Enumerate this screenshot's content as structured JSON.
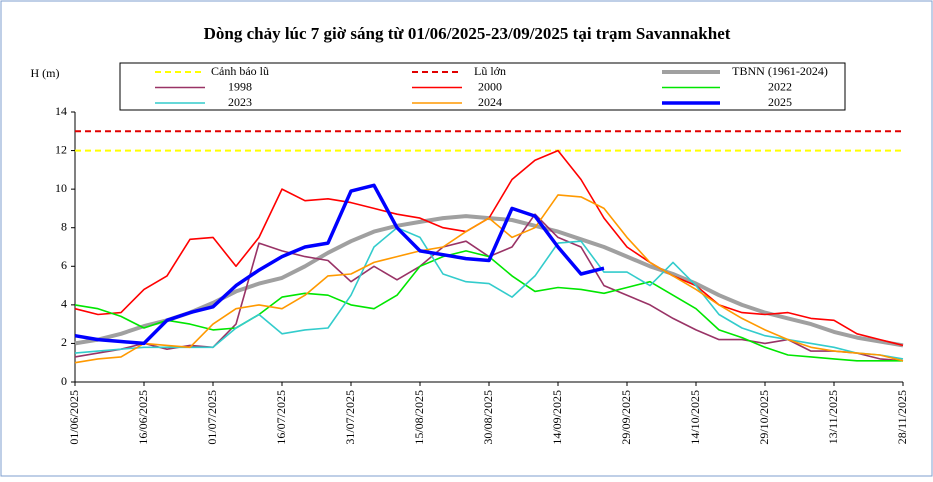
{
  "chart_data": {
    "type": "line",
    "title": "Dòng chảy lúc 7 giờ sáng từ 01/06/2025-23/09/2025 tại trạm Savannakhet",
    "y_label": "H (m)",
    "x": [
      "01/06/2025",
      null,
      null,
      "16/06/2025",
      null,
      null,
      "01/07/2025",
      null,
      null,
      "16/07/2025",
      null,
      null,
      "31/07/2025",
      null,
      null,
      "15/08/2025",
      null,
      null,
      "30/08/2025",
      null,
      null,
      "14/09/2025",
      null,
      null,
      "29/09/2025",
      null,
      null,
      "14/10/2025",
      null,
      null,
      "29/10/2025",
      null,
      null,
      "13/11/2025",
      null,
      null,
      "28/11/2025"
    ],
    "ylim": [
      0,
      14
    ],
    "yticks": [
      0,
      2,
      4,
      6,
      8,
      10,
      12,
      14
    ],
    "series": [
      {
        "name": "Cảnh báo lũ",
        "color": "#ffff00",
        "dashed": true,
        "value": 12
      },
      {
        "name": "Lũ lớn",
        "color": "#e00000",
        "dashed": true,
        "value": 13
      },
      {
        "name": "TBNN (1961-2024)",
        "color": "#a0a0a0",
        "values": [
          2.0,
          2.2,
          2.5,
          2.9,
          3.2,
          3.6,
          4.1,
          4.7,
          5.1,
          5.4,
          6.0,
          6.7,
          7.3,
          7.8,
          8.1,
          8.3,
          8.5,
          8.6,
          8.5,
          8.4,
          8.1,
          7.8,
          7.4,
          7.0,
          6.5,
          6.0,
          5.6,
          5.1,
          4.5,
          4.0,
          3.6,
          3.3,
          3.0,
          2.6,
          2.3,
          2.1,
          1.9
        ]
      },
      {
        "name": "1998",
        "color": "#993366",
        "values": [
          1.3,
          1.5,
          1.7,
          2.0,
          1.7,
          1.9,
          1.8,
          3.0,
          7.2,
          6.8,
          6.5,
          6.3,
          5.2,
          6.0,
          5.3,
          6.0,
          7.0,
          7.3,
          6.5,
          7.0,
          8.7,
          7.5,
          7.0,
          5.0,
          4.5,
          4.0,
          3.3,
          2.7,
          2.2,
          2.2,
          2.0,
          2.2,
          1.6,
          1.6,
          1.5,
          1.2,
          1.1
        ]
      },
      {
        "name": "2000",
        "color": "#ff0000",
        "values": [
          3.8,
          3.5,
          3.6,
          4.8,
          5.5,
          7.4,
          7.5,
          6.0,
          7.5,
          10.0,
          9.4,
          9.5,
          9.3,
          9.0,
          8.7,
          8.5,
          8.0,
          7.8,
          8.5,
          10.5,
          11.5,
          12.0,
          10.5,
          8.5,
          7.0,
          6.2,
          5.5,
          5.0,
          4.0,
          3.6,
          3.5,
          3.6,
          3.3,
          3.2,
          2.5,
          2.2,
          1.9
        ]
      },
      {
        "name": "2022",
        "color": "#00e600",
        "values": [
          4.0,
          3.8,
          3.4,
          2.8,
          3.2,
          3.0,
          2.7,
          2.8,
          3.5,
          4.4,
          4.6,
          4.5,
          4.0,
          3.8,
          4.5,
          6.0,
          6.5,
          6.8,
          6.5,
          5.5,
          4.7,
          4.9,
          4.8,
          4.6,
          4.9,
          5.2,
          4.5,
          3.8,
          2.7,
          2.3,
          1.8,
          1.4,
          1.3,
          1.2,
          1.1,
          1.1,
          1.1
        ]
      },
      {
        "name": "2023",
        "color": "#33cccc",
        "values": [
          1.5,
          1.6,
          1.7,
          1.8,
          1.8,
          1.8,
          1.8,
          2.8,
          3.5,
          2.5,
          2.7,
          2.8,
          4.5,
          7.0,
          8.0,
          7.5,
          5.6,
          5.2,
          5.1,
          4.4,
          5.5,
          7.2,
          7.3,
          5.7,
          5.7,
          5.0,
          6.2,
          5.0,
          3.5,
          2.8,
          2.4,
          2.2,
          2.0,
          1.8,
          1.5,
          1.4,
          1.2
        ]
      },
      {
        "name": "2024",
        "color": "#ff9900",
        "values": [
          1.0,
          1.2,
          1.3,
          2.0,
          1.9,
          1.8,
          3.0,
          3.8,
          4.0,
          3.8,
          4.5,
          5.5,
          5.6,
          6.2,
          6.5,
          6.8,
          7.0,
          7.8,
          8.5,
          7.5,
          8.0,
          9.7,
          9.6,
          9.0,
          7.5,
          6.2,
          5.5,
          4.8,
          4.0,
          3.3,
          2.7,
          2.2,
          1.8,
          1.6,
          1.5,
          1.4,
          1.1
        ]
      },
      {
        "name": "2025",
        "color": "#0000ff",
        "values": [
          2.4,
          2.2,
          2.1,
          2.0,
          3.2,
          3.6,
          3.9,
          5.0,
          5.8,
          6.5,
          7.0,
          7.2,
          9.9,
          10.2,
          8.0,
          6.8,
          6.6,
          6.4,
          6.3,
          9.0,
          8.6,
          7.0,
          5.6,
          5.9,
          null,
          null,
          null,
          null,
          null,
          null,
          null,
          null,
          null,
          null,
          null,
          null,
          null
        ]
      }
    ]
  }
}
